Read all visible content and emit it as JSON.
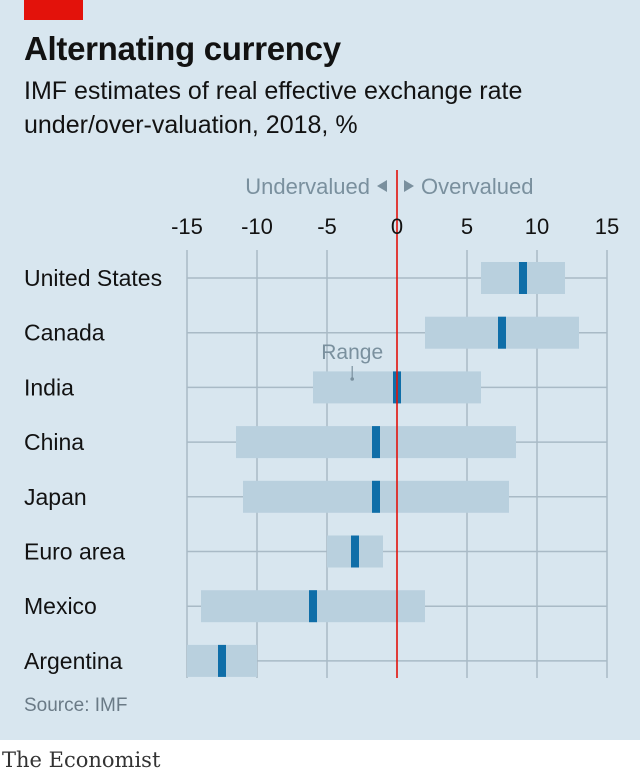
{
  "header": {
    "title": "Alternating currency",
    "subtitle": "IMF estimates of real effective exchange rate under/over-valuation, 2018, %"
  },
  "footer": {
    "source": "Source: IMF",
    "brand": "The Economist"
  },
  "colors": {
    "background": "#d8e6ef",
    "range_bar": "#b9d0de",
    "estimate_marker": "#0f6ea8",
    "zero_line": "#e3120b",
    "gridline": "#a9bac6",
    "brand_red": "#e3120b"
  },
  "chart_data": {
    "type": "range",
    "orientation": "horizontal",
    "xlim": [
      -15,
      15
    ],
    "xticks": [
      -15,
      -10,
      -5,
      0,
      5,
      10,
      15
    ],
    "direction_labels": {
      "left": "Undervalued",
      "right": "Overvalued"
    },
    "annotation": "Range",
    "grid": true,
    "categories": [
      "United States",
      "Canada",
      "India",
      "China",
      "Japan",
      "Euro area",
      "Mexico",
      "Argentina"
    ],
    "ranges": [
      [
        6,
        12
      ],
      [
        2,
        13
      ],
      [
        -6,
        6
      ],
      [
        -11.5,
        8.5
      ],
      [
        -11,
        8
      ],
      [
        -5,
        -1
      ],
      [
        -14,
        2
      ],
      [
        -15,
        -10
      ]
    ],
    "estimates": [
      9,
      7.5,
      0,
      -1.5,
      -1.5,
      -3,
      -6,
      -12.5
    ]
  }
}
